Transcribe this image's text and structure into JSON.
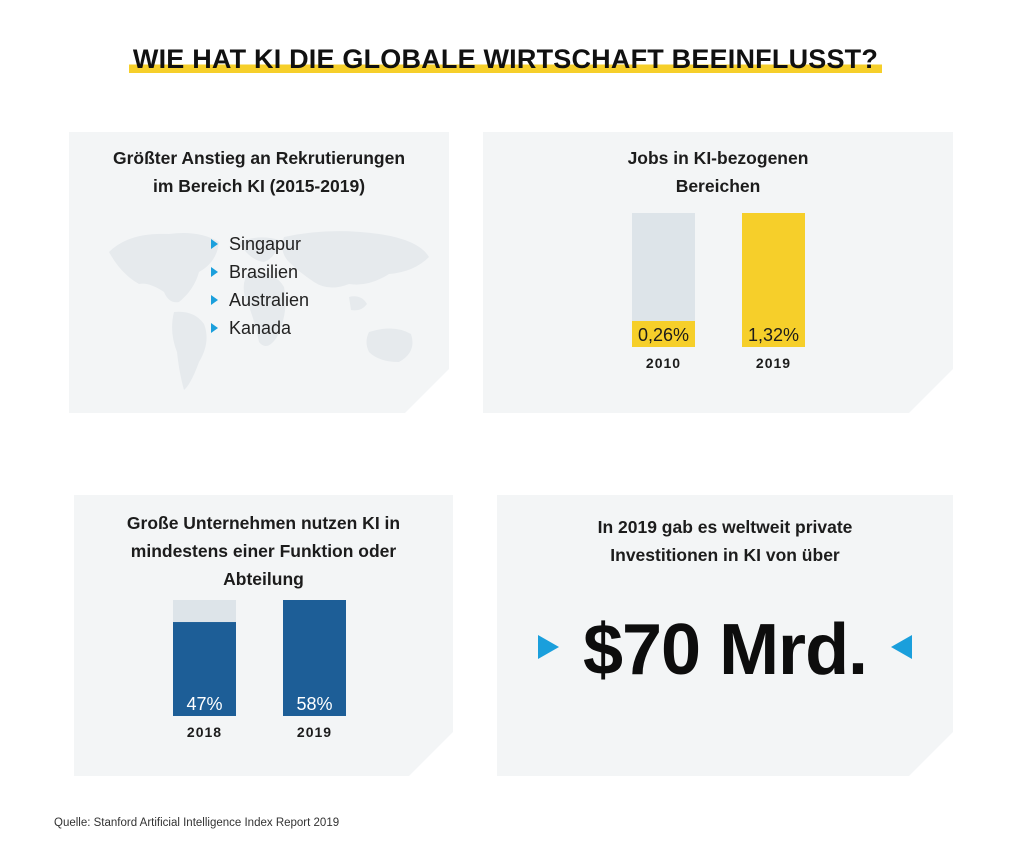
{
  "title": "WIE HAT KI DIE GLOBALE WIRTSCHAFT BEEINFLUSST?",
  "panel_recruiting": {
    "title_line1": "Größter Anstieg an Rekrutierungen",
    "title_line2": "im Bereich KI (2015-2019)",
    "countries": [
      "Singapur",
      "Brasilien",
      "Australien",
      "Kanada"
    ],
    "bullet_color": "#1a9fdc"
  },
  "panel_jobs": {
    "title_line1": "Jobs in KI-bezogenen",
    "title_line2": "Bereichen"
  },
  "panel_companies": {
    "title_line1": "Große Unternehmen nutzen KI in",
    "title_line2": "mindestens einer Funktion oder",
    "title_line3": "Abteilung"
  },
  "panel_investment": {
    "title_line1": "In 2019 gab es weltweit private",
    "title_line2": "Investitionen in KI von über",
    "amount": "$70 Mrd.",
    "arrow_color": "#1a9fdc"
  },
  "source": "Quelle: Stanford Artificial Intelligence Index Report 2019",
  "chart_data": [
    {
      "type": "bar",
      "categories": [
        "2010",
        "2019"
      ],
      "values": [
        0.26,
        1.32
      ],
      "value_labels": [
        "0,26%",
        "1,32%"
      ],
      "unit": "%",
      "track_color": "#dde4e9",
      "value_colors": [
        "#f6cf2a",
        "#f6cf2a"
      ],
      "bar_fill_colors": [
        "#dde4e9",
        "#f6cf2a"
      ],
      "ylim": [
        0,
        1.32
      ]
    },
    {
      "type": "bar",
      "categories": [
        "2018",
        "2019"
      ],
      "values": [
        47,
        58
      ],
      "value_labels": [
        "47%",
        "58%"
      ],
      "unit": "%",
      "track_color": "#dde4e9",
      "bar_color": "#1d5e97",
      "ylim": [
        0,
        58
      ]
    }
  ]
}
